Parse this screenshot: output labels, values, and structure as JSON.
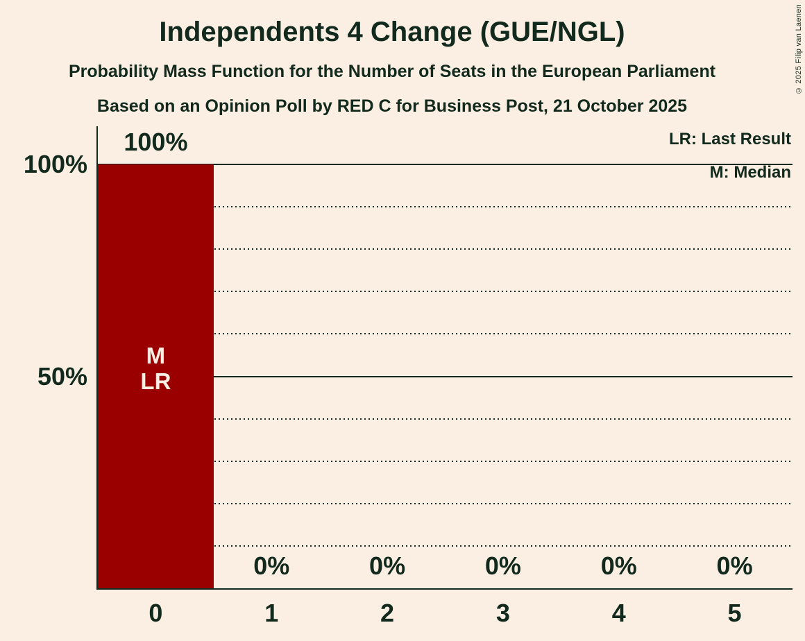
{
  "title": "Independents 4 Change (GUE/NGL)",
  "subtitles": [
    "Probability Mass Function for the Number of Seats in the European Parliament",
    "Based on an Opinion Poll by RED C for Business Post, 21 October 2025"
  ],
  "legend": {
    "lr": "LR: Last Result",
    "m": "M: Median"
  },
  "copyright": "© 2025 Filip van Laenen",
  "colors": {
    "background": "#fbeee2",
    "bar": "#9a0000",
    "text": "#122a1d",
    "bar_text": "#fbeee2"
  },
  "chart_data": {
    "type": "bar",
    "title": "Independents 4 Change (GUE/NGL)",
    "categories": [
      "0",
      "1",
      "2",
      "3",
      "4",
      "5"
    ],
    "values": [
      100,
      0,
      0,
      0,
      0,
      0
    ],
    "value_labels": [
      "100%",
      "0%",
      "0%",
      "0%",
      "0%",
      "0%"
    ],
    "ylim": [
      0,
      100
    ],
    "yticks": [
      {
        "value": 100,
        "label": "100%"
      },
      {
        "value": 50,
        "label": "50%"
      }
    ],
    "gridlines_solid": [
      100,
      50
    ],
    "gridlines_dotted": [
      90,
      80,
      70,
      60,
      40,
      30,
      20,
      10
    ],
    "bar_annotations": [
      {
        "category_index": 0,
        "lines": [
          "M",
          "LR"
        ]
      }
    ],
    "legend_position": "top-right",
    "grid": "horizontal-only"
  }
}
